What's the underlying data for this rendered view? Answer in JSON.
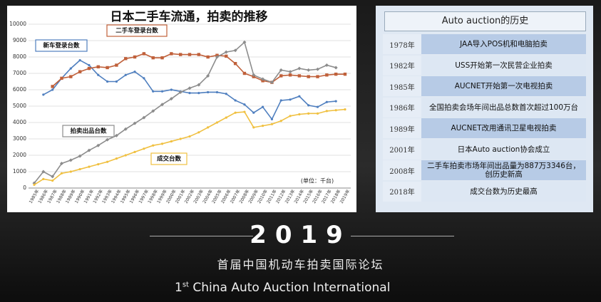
{
  "chart_data": {
    "type": "line",
    "title": "日本二手车流通，拍卖的推移",
    "annotation": "(单位：千台)",
    "categories": [
      "1985年",
      "1986年",
      "1987年",
      "1988年",
      "1989年",
      "1990年",
      "1991年",
      "1992年",
      "1993年",
      "1994年",
      "1995年",
      "1996年",
      "1997年",
      "1998年",
      "1999年",
      "2000年",
      "2001年",
      "2002年",
      "2003年",
      "2004年",
      "2005年",
      "2006年",
      "2007年",
      "2008年",
      "2009年",
      "2010年",
      "2011年",
      "2012年",
      "2013年",
      "2014年",
      "2015年",
      "2016年",
      "2017年",
      "2018年",
      "2019年"
    ],
    "series": [
      {
        "name": "新车登录台数",
        "color": "#4f7fbf",
        "marker": "circle",
        "values": [
          null,
          5700,
          6000,
          6700,
          7300,
          7800,
          7500,
          6900,
          6500,
          6500,
          6900,
          7100,
          6700,
          5900,
          5900,
          6000,
          5900,
          5800,
          5800,
          5850,
          5850,
          5750,
          5350,
          5100,
          4600,
          4950,
          4200,
          5350,
          5400,
          5600,
          5050,
          4950,
          5250,
          5300,
          null
        ]
      },
      {
        "name": "二手车登录台数",
        "color": "#c0603a",
        "marker": "square",
        "values": [
          null,
          null,
          6200,
          6700,
          6800,
          7100,
          7300,
          7400,
          7350,
          7500,
          7900,
          8000,
          8200,
          7950,
          7950,
          8200,
          8150,
          8150,
          8150,
          8000,
          8100,
          8050,
          7600,
          7000,
          6800,
          6550,
          6450,
          6850,
          6900,
          6850,
          6800,
          6800,
          6900,
          6950,
          6950
        ]
      },
      {
        "name": "拍卖出品台数",
        "color": "#8c8c8c",
        "marker": "diamond",
        "values": [
          300,
          1000,
          700,
          1500,
          1700,
          1950,
          2300,
          2600,
          2950,
          3200,
          3600,
          3950,
          4300,
          4700,
          5100,
          5450,
          5850,
          6100,
          6300,
          6850,
          8000,
          8300,
          8400,
          8900,
          6900,
          6650,
          6450,
          7200,
          7100,
          7300,
          7200,
          7250,
          7500,
          7350,
          null
        ]
      },
      {
        "name": "成交台数",
        "color": "#f0c040",
        "marker": "circle",
        "values": [
          200,
          550,
          450,
          900,
          1000,
          1150,
          1300,
          1450,
          1600,
          1800,
          2000,
          2200,
          2400,
          2600,
          2700,
          2850,
          3000,
          3150,
          3400,
          3700,
          4000,
          4300,
          4600,
          4650,
          3700,
          3800,
          3900,
          4100,
          4400,
          4500,
          4550,
          4550,
          4700,
          4750,
          4800
        ]
      }
    ],
    "ylim": [
      0,
      10000
    ],
    "yticks": [
      0,
      1000,
      2000,
      3000,
      4000,
      5000,
      6000,
      7000,
      8000,
      9000,
      10000
    ],
    "grid": true
  },
  "history": {
    "title": "Auto auction的历史",
    "rows": [
      [
        "1978年",
        "JAA导入POS机和电脑拍卖"
      ],
      [
        "1982年",
        "USS开始第一次民营企业拍卖"
      ],
      [
        "1985年",
        "AUCNET开始第一次电视拍卖"
      ],
      [
        "1986年",
        "全国拍卖会场年间出品总数首次超过100万台"
      ],
      [
        "1989年",
        "AUCNET改用通讯卫星电视拍卖"
      ],
      [
        "2001年",
        "日本Auto auction协会成立"
      ],
      [
        "2008年",
        "二手车拍卖市场年间出品量为887万3346台，创历史新高"
      ],
      [
        "2018年",
        "成交台数为历史最高"
      ]
    ]
  },
  "footer": {
    "year": "2019",
    "chinese": "首届中国机动车拍卖国际论坛",
    "english_number": "1",
    "english_suffix": "st",
    "english_text": "China Auto Auction International"
  }
}
